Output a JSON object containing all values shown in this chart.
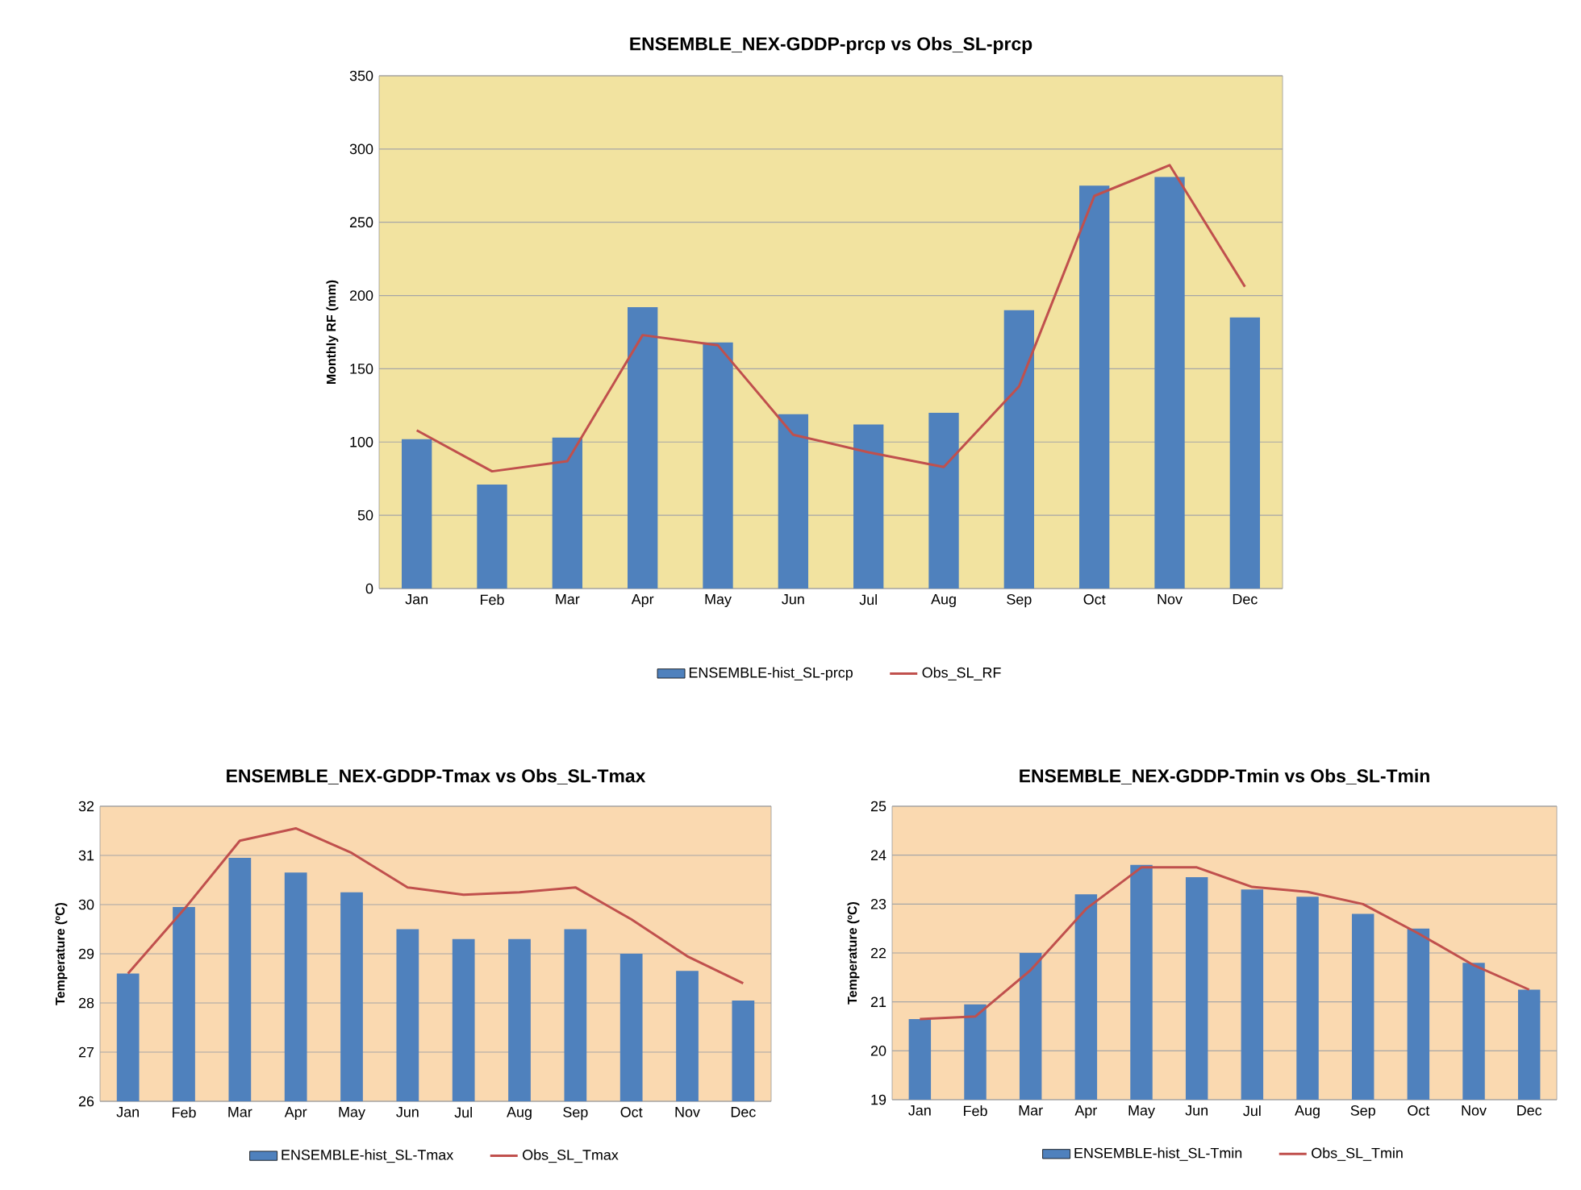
{
  "chart_data": [
    {
      "type": "bar",
      "title": "ENSEMBLE_NEX-GDDP-prcp vs Obs_SL-prcp",
      "ylabel": "Monthly RF (mm)",
      "categories": [
        "Jan",
        "Feb",
        "Mar",
        "Apr",
        "May",
        "Jun",
        "Jul",
        "Aug",
        "Sep",
        "Oct",
        "Nov",
        "Dec"
      ],
      "ylim": [
        0,
        350
      ],
      "yticks": [
        0,
        50,
        100,
        150,
        200,
        250,
        300,
        350
      ],
      "grid": "y",
      "legend": "bottom",
      "series": [
        {
          "name": "ENSEMBLE-hist_SL-prcp",
          "color": "#4f81bd",
          "values": [
            102,
            71,
            103,
            192,
            168,
            119,
            112,
            120,
            190,
            275,
            281,
            185
          ]
        },
        {
          "name": "Obs_SL_RF",
          "type": "line",
          "color": "#c0504d",
          "values": [
            108,
            80,
            87,
            173,
            166,
            105,
            93,
            83,
            138,
            268,
            289,
            206
          ]
        }
      ]
    },
    {
      "type": "bar",
      "title": "ENSEMBLE_NEX-GDDP-Tmax vs Obs_SL-Tmax",
      "ylabel": "Temperature (ºC)",
      "categories": [
        "Jan",
        "Feb",
        "Mar",
        "Apr",
        "May",
        "Jun",
        "Jul",
        "Aug",
        "Sep",
        "Oct",
        "Nov",
        "Dec"
      ],
      "ylim": [
        26,
        32
      ],
      "yticks": [
        26,
        27,
        28,
        29,
        30,
        31,
        32
      ],
      "grid": "y",
      "legend": "bottom",
      "series": [
        {
          "name": "ENSEMBLE-hist_SL-Tmax",
          "color": "#4f81bd",
          "values": [
            28.6,
            29.95,
            30.95,
            30.65,
            30.25,
            29.5,
            29.3,
            29.3,
            29.5,
            29.0,
            28.65,
            28.05
          ]
        },
        {
          "name": "Obs_SL_Tmax",
          "type": "line",
          "color": "#c0504d",
          "values": [
            28.6,
            29.9,
            31.3,
            31.55,
            31.05,
            30.35,
            30.2,
            30.25,
            30.35,
            29.7,
            28.95,
            28.4
          ]
        }
      ]
    },
    {
      "type": "bar",
      "title": "ENSEMBLE_NEX-GDDP-Tmin vs Obs_SL-Tmin",
      "ylabel": "Temperature (ºC)",
      "categories": [
        "Jan",
        "Feb",
        "Mar",
        "Apr",
        "May",
        "Jun",
        "Jul",
        "Aug",
        "Sep",
        "Oct",
        "Nov",
        "Dec"
      ],
      "ylim": [
        19,
        25
      ],
      "yticks": [
        19,
        20,
        21,
        22,
        23,
        24,
        25
      ],
      "grid": "y",
      "legend": "bottom",
      "series": [
        {
          "name": "ENSEMBLE-hist_SL-Tmin",
          "color": "#4f81bd",
          "values": [
            20.65,
            20.95,
            22.0,
            23.2,
            23.8,
            23.55,
            23.3,
            23.15,
            22.8,
            22.5,
            21.8,
            21.25
          ]
        },
        {
          "name": "Obs_SL_Tmin",
          "type": "line",
          "color": "#c0504d",
          "values": [
            20.65,
            20.7,
            21.65,
            22.9,
            23.75,
            23.75,
            23.35,
            23.25,
            23.0,
            22.4,
            21.75,
            21.25
          ]
        }
      ]
    }
  ]
}
